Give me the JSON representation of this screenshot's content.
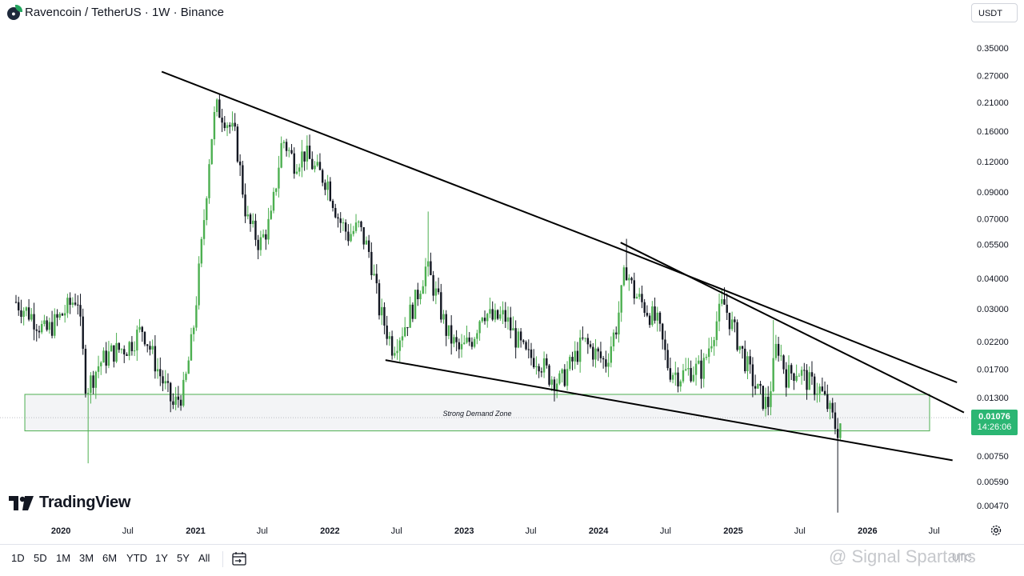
{
  "header": {
    "symbol_title": "Ravencoin / TetherUS · 1W · Binance",
    "symbol_icon": "ravencoin-logo-icon",
    "currency_selector": "USDT"
  },
  "price_badge": {
    "price": "0.01076",
    "countdown": "14:26:06",
    "color": "#2bb673"
  },
  "logo": {
    "text": "TradingView"
  },
  "watermark": {
    "text": "@ Signal Spartans"
  },
  "clock_text": "UTC",
  "range_buttons": [
    "1D",
    "5D",
    "1M",
    "3M",
    "6M",
    "YTD",
    "1Y",
    "5Y",
    "All"
  ],
  "colors": {
    "up": "#4caf50",
    "down": "#131722",
    "zone_border": "#4caf50",
    "zone_fill": "#f3f4f6",
    "trendline": "#000000"
  },
  "chart_data": {
    "type": "candlestick",
    "title": "Ravencoin / TetherUS · 1W · Binance",
    "y_scale": "log",
    "y_ticks": [
      0.35,
      0.27,
      0.21,
      0.16,
      0.12,
      0.09,
      0.07,
      0.055,
      0.04,
      0.03,
      0.022,
      0.017,
      0.013,
      0.0075,
      0.0059,
      0.0047
    ],
    "y_tick_labels": [
      "0.35000",
      "0.27000",
      "0.21000",
      "0.16000",
      "0.12000",
      "0.09000",
      "0.07000",
      "0.05500",
      "0.04000",
      "0.03000",
      "0.02200",
      "0.01700",
      "0.01300",
      "0.00750",
      "0.00590",
      "0.00470"
    ],
    "x_range": [
      "2019-09-01",
      "2026-10-01"
    ],
    "x_ticks": [
      {
        "date": "2020-01-01",
        "label": "2020",
        "bold": true
      },
      {
        "date": "2020-07-01",
        "label": "Jul",
        "bold": false
      },
      {
        "date": "2021-01-01",
        "label": "2021",
        "bold": true
      },
      {
        "date": "2021-07-01",
        "label": "Jul",
        "bold": false
      },
      {
        "date": "2022-01-01",
        "label": "2022",
        "bold": true
      },
      {
        "date": "2022-07-01",
        "label": "Jul",
        "bold": false
      },
      {
        "date": "2023-01-01",
        "label": "2023",
        "bold": true
      },
      {
        "date": "2023-07-01",
        "label": "Jul",
        "bold": false
      },
      {
        "date": "2024-01-01",
        "label": "2024",
        "bold": true
      },
      {
        "date": "2024-07-01",
        "label": "Jul",
        "bold": false
      },
      {
        "date": "2025-01-01",
        "label": "2025",
        "bold": true
      },
      {
        "date": "2025-07-01",
        "label": "Jul",
        "bold": false
      },
      {
        "date": "2026-01-01",
        "label": "2026",
        "bold": true
      },
      {
        "date": "2026-07-01",
        "label": "Jul",
        "bold": false
      }
    ],
    "current_price": 0.01076,
    "price_path": [
      [
        "2019-09-01",
        0.032
      ],
      [
        "2019-10-15",
        0.028
      ],
      [
        "2019-11-20",
        0.024
      ],
      [
        "2020-01-01",
        0.028
      ],
      [
        "2020-02-15",
        0.034
      ],
      [
        "2020-03-10",
        0.014
      ],
      [
        "2020-04-15",
        0.018
      ],
      [
        "2020-05-20",
        0.02
      ],
      [
        "2020-07-01",
        0.021
      ],
      [
        "2020-08-10",
        0.025
      ],
      [
        "2020-09-20",
        0.017
      ],
      [
        "2020-11-01",
        0.012
      ],
      [
        "2020-12-01",
        0.014
      ],
      [
        "2020-12-25",
        0.024
      ],
      [
        "2021-01-20",
        0.06
      ],
      [
        "2021-02-10",
        0.14
      ],
      [
        "2021-02-25",
        0.2
      ],
      [
        "2021-03-20",
        0.185
      ],
      [
        "2021-04-20",
        0.15
      ],
      [
        "2021-05-20",
        0.07
      ],
      [
        "2021-06-25",
        0.055
      ],
      [
        "2021-07-25",
        0.07
      ],
      [
        "2021-08-25",
        0.15
      ],
      [
        "2021-09-25",
        0.12
      ],
      [
        "2021-10-25",
        0.13
      ],
      [
        "2021-11-25",
        0.11
      ],
      [
        "2021-12-25",
        0.1
      ],
      [
        "2022-01-25",
        0.07
      ],
      [
        "2022-02-20",
        0.06
      ],
      [
        "2022-03-20",
        0.065
      ],
      [
        "2022-04-20",
        0.05
      ],
      [
        "2022-05-15",
        0.03
      ],
      [
        "2022-06-20",
        0.021
      ],
      [
        "2022-07-20",
        0.025
      ],
      [
        "2022-08-20",
        0.032
      ],
      [
        "2022-09-20",
        0.045
      ],
      [
        "2022-10-20",
        0.033
      ],
      [
        "2022-11-15",
        0.024
      ],
      [
        "2022-12-20",
        0.02
      ],
      [
        "2023-01-25",
        0.023
      ],
      [
        "2023-02-20",
        0.03
      ],
      [
        "2023-03-20",
        0.027
      ],
      [
        "2023-04-20",
        0.028
      ],
      [
        "2023-05-20",
        0.023
      ],
      [
        "2023-06-20",
        0.019
      ],
      [
        "2023-07-20",
        0.019
      ],
      [
        "2023-08-20",
        0.016
      ],
      [
        "2023-09-20",
        0.015
      ],
      [
        "2023-10-20",
        0.018
      ],
      [
        "2023-11-20",
        0.022
      ],
      [
        "2023-12-20",
        0.02
      ],
      [
        "2024-01-20",
        0.018
      ],
      [
        "2024-02-20",
        0.026
      ],
      [
        "2024-03-15",
        0.045
      ],
      [
        "2024-04-05",
        0.035
      ],
      [
        "2024-05-10",
        0.03
      ],
      [
        "2024-06-10",
        0.026
      ],
      [
        "2024-07-10",
        0.017
      ],
      [
        "2024-08-10",
        0.016
      ],
      [
        "2024-09-10",
        0.017
      ],
      [
        "2024-10-10",
        0.017
      ],
      [
        "2024-11-10",
        0.025
      ],
      [
        "2024-12-05",
        0.032
      ],
      [
        "2025-01-05",
        0.024
      ],
      [
        "2025-02-05",
        0.018
      ],
      [
        "2025-03-05",
        0.014
      ],
      [
        "2025-04-05",
        0.012
      ],
      [
        "2025-04-30",
        0.022
      ],
      [
        "2025-05-25",
        0.016
      ],
      [
        "2025-06-25",
        0.017
      ],
      [
        "2025-07-25",
        0.015
      ],
      [
        "2025-08-25",
        0.014
      ],
      [
        "2025-09-25",
        0.011
      ],
      [
        "2025-10-10",
        0.0095
      ],
      [
        "2025-10-25",
        0.01076
      ]
    ],
    "spikes": [
      [
        "2020-03-12",
        0.007
      ],
      [
        "2022-09-25",
        0.075
      ],
      [
        "2024-03-20",
        0.058
      ],
      [
        "2025-04-22",
        0.027
      ],
      [
        "2025-10-10",
        0.0044
      ]
    ],
    "trendlines": [
      {
        "name": "descending-resistance",
        "from": [
          "2020-10-01",
          0.28
        ],
        "to": [
          "2024-03-10",
          0.052
        ]
      },
      {
        "name": "upper-falling-wedge-line",
        "from": [
          "2024-03-10",
          0.052
        ],
        "to": [
          "2026-09-01",
          0.015
        ]
      },
      {
        "name": "lower-resistance-line",
        "from": [
          "2024-03-01",
          0.056
        ],
        "to": [
          "2026-09-20",
          0.0113
        ]
      },
      {
        "name": "support-line",
        "from": [
          "2022-06-01",
          0.0185
        ],
        "to": [
          "2026-08-20",
          0.0072
        ]
      }
    ],
    "zone": {
      "label": "Strong Demand Zone",
      "from": "2019-09-25",
      "to": "2026-08-20",
      "high": 0.0134,
      "low": 0.0095
    }
  }
}
